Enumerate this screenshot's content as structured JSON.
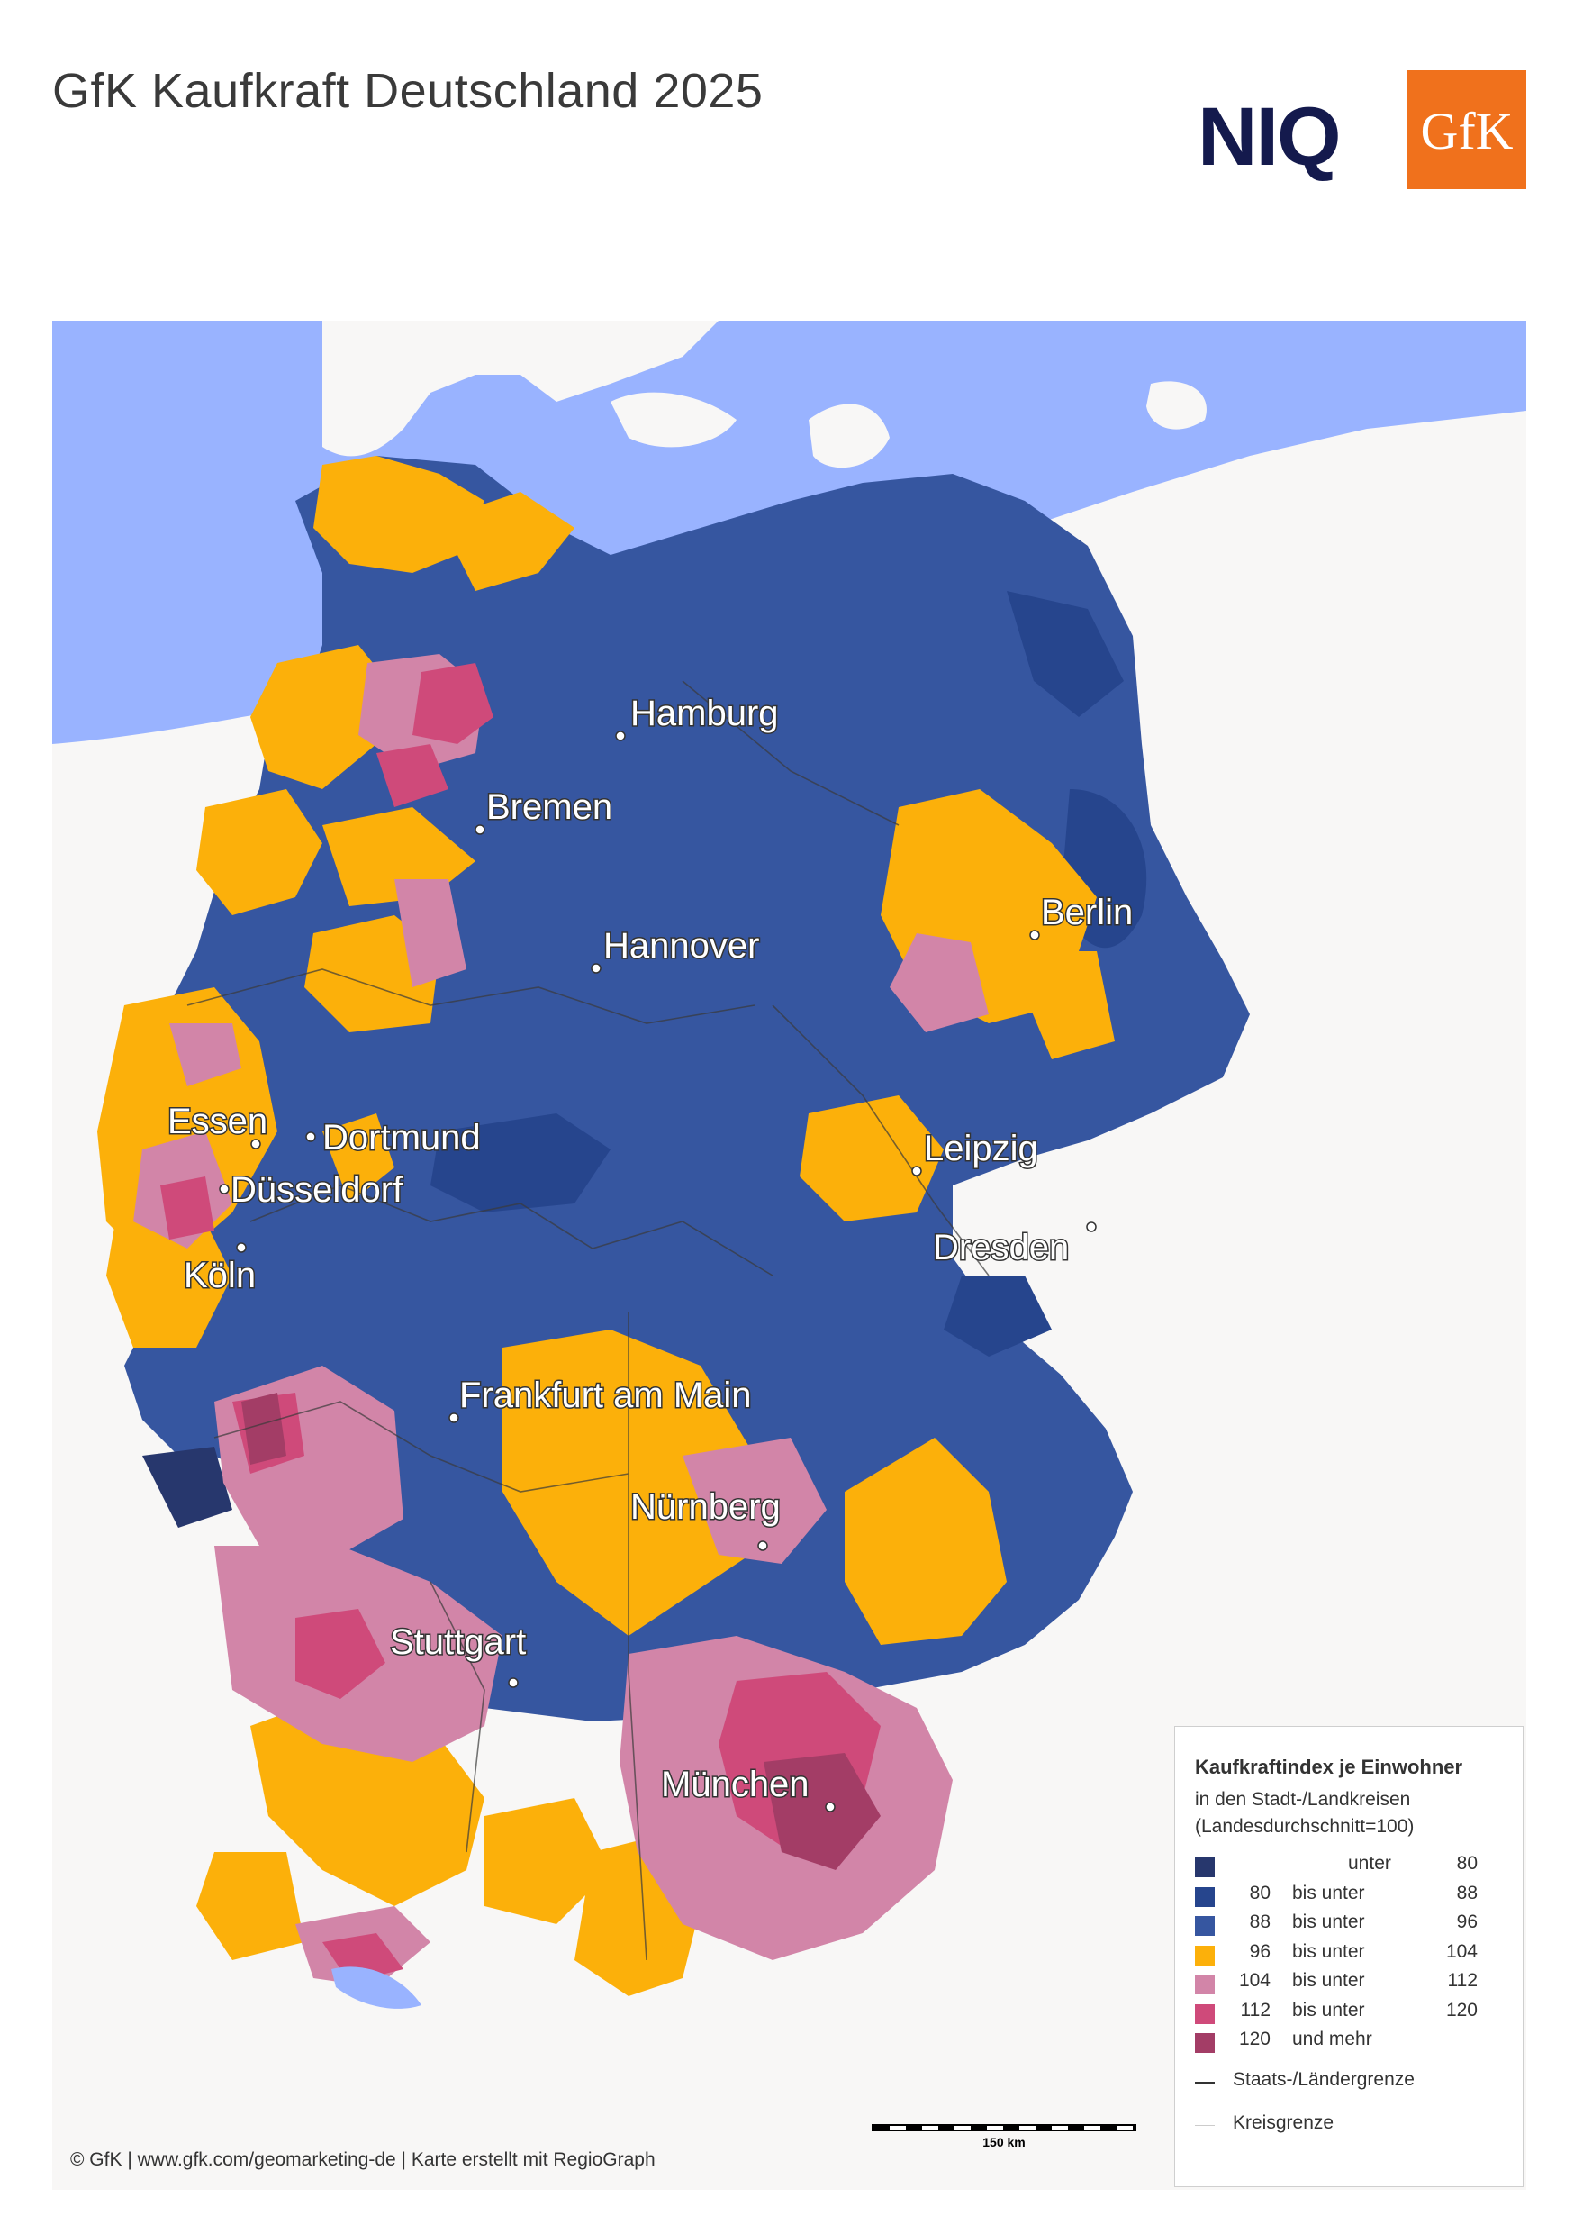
{
  "header": {
    "title": "GfK Kaufkraft Deutschland 2025",
    "logo_niq": "NIQ",
    "logo_gfk": "GfK"
  },
  "colors": {
    "sea": "#99b3ff",
    "land_outside": "#f8f7f6",
    "class_lt80": "#27376d",
    "class_80_88": "#26458d",
    "class_88_96": "#3656a0",
    "class_96_104": "#fcb00a",
    "class_104_112": "#d285a8",
    "class_112_120": "#cf4a7a",
    "class_ge120": "#a33d66"
  },
  "map": {
    "cities": [
      {
        "name": "Hamburg"
      },
      {
        "name": "Bremen"
      },
      {
        "name": "Berlin"
      },
      {
        "name": "Hannover"
      },
      {
        "name": "Essen"
      },
      {
        "name": "Dortmund"
      },
      {
        "name": "Düsseldorf"
      },
      {
        "name": "Köln"
      },
      {
        "name": "Leipzig"
      },
      {
        "name": "Dresden"
      },
      {
        "name": "Frankfurt am Main"
      },
      {
        "name": "Nürnberg"
      },
      {
        "name": "Stuttgart"
      },
      {
        "name": "München"
      }
    ]
  },
  "legend": {
    "title": "Kaufkraftindex je Einwohner",
    "subtitle_1": "in den Stadt-/Landkreisen",
    "subtitle_2": "(Landesdurchschnitt=100)",
    "classes": [
      {
        "from": "",
        "op": "unter",
        "to": "80",
        "color": "#27376d"
      },
      {
        "from": "80",
        "op": "bis unter",
        "to": "88",
        "color": "#26458d"
      },
      {
        "from": "88",
        "op": "bis unter",
        "to": "96",
        "color": "#3656a0"
      },
      {
        "from": "96",
        "op": "bis unter",
        "to": "104",
        "color": "#fcb00a"
      },
      {
        "from": "104",
        "op": "bis unter",
        "to": "112",
        "color": "#d285a8"
      },
      {
        "from": "112",
        "op": "bis unter",
        "to": "120",
        "color": "#cf4a7a"
      },
      {
        "from": "120",
        "op": "und mehr",
        "to": "",
        "color": "#a33d66"
      }
    ],
    "line_state": "Staats-/Ländergrenze",
    "line_district": "Kreisgrenze"
  },
  "scalebar": {
    "label": "150 km"
  },
  "footer": {
    "copyright": "© GfK | www.gfk.com/geomarketing-de | Karte erstellt mit RegioGraph"
  }
}
